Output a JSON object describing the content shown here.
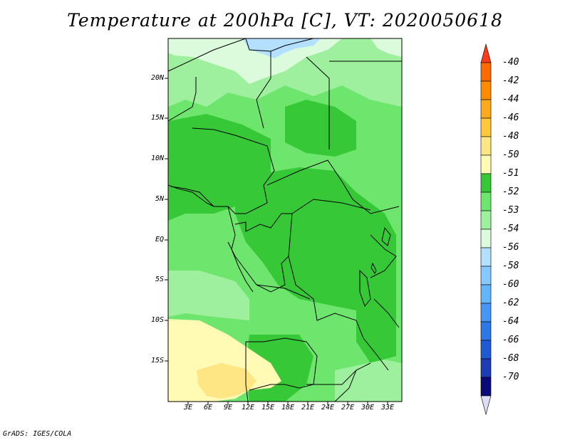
{
  "title": "Temperature at 200hPa [C], VT: 2020050618",
  "credit": "GrADS: IGES/COLA",
  "map": {
    "lat_labels": [
      "20N",
      "15N",
      "10N",
      "5N",
      "EQ",
      "5S",
      "10S",
      "15S"
    ],
    "lon_labels": [
      "3E",
      "6E",
      "9E",
      "12E",
      "15E",
      "18E",
      "21E",
      "24E",
      "27E",
      "30E",
      "33E"
    ]
  },
  "colorbar": {
    "labels": [
      "-40",
      "-42",
      "-44",
      "-46",
      "-48",
      "-50",
      "-51",
      "-52",
      "-53",
      "-54",
      "-56",
      "-58",
      "-60",
      "-62",
      "-64",
      "-66",
      "-68",
      "-70"
    ],
    "colors": [
      "#ff3b1a",
      "#ff6a00",
      "#ff8c00",
      "#ffaa1e",
      "#ffc83c",
      "#ffe685",
      "#fffbb4",
      "#37c837",
      "#6ee66e",
      "#9ef09e",
      "#dcfadc",
      "#b4e0ff",
      "#87c8ff",
      "#64b4fa",
      "#4696f5",
      "#2d78e6",
      "#1e5ad2",
      "#1e3cb4",
      "#0a0a78",
      "#dcdcf5"
    ]
  },
  "legend_colors": {
    "land_52": "#37c837",
    "land_53": "#6ee66e",
    "land_54": "#9ef09e",
    "land_51": "#fffbb4",
    "land_50": "#ffe685",
    "cold_56": "#dcfadc",
    "cold_58": "#b4e0ff",
    "cold_60": "#87c8ff"
  }
}
